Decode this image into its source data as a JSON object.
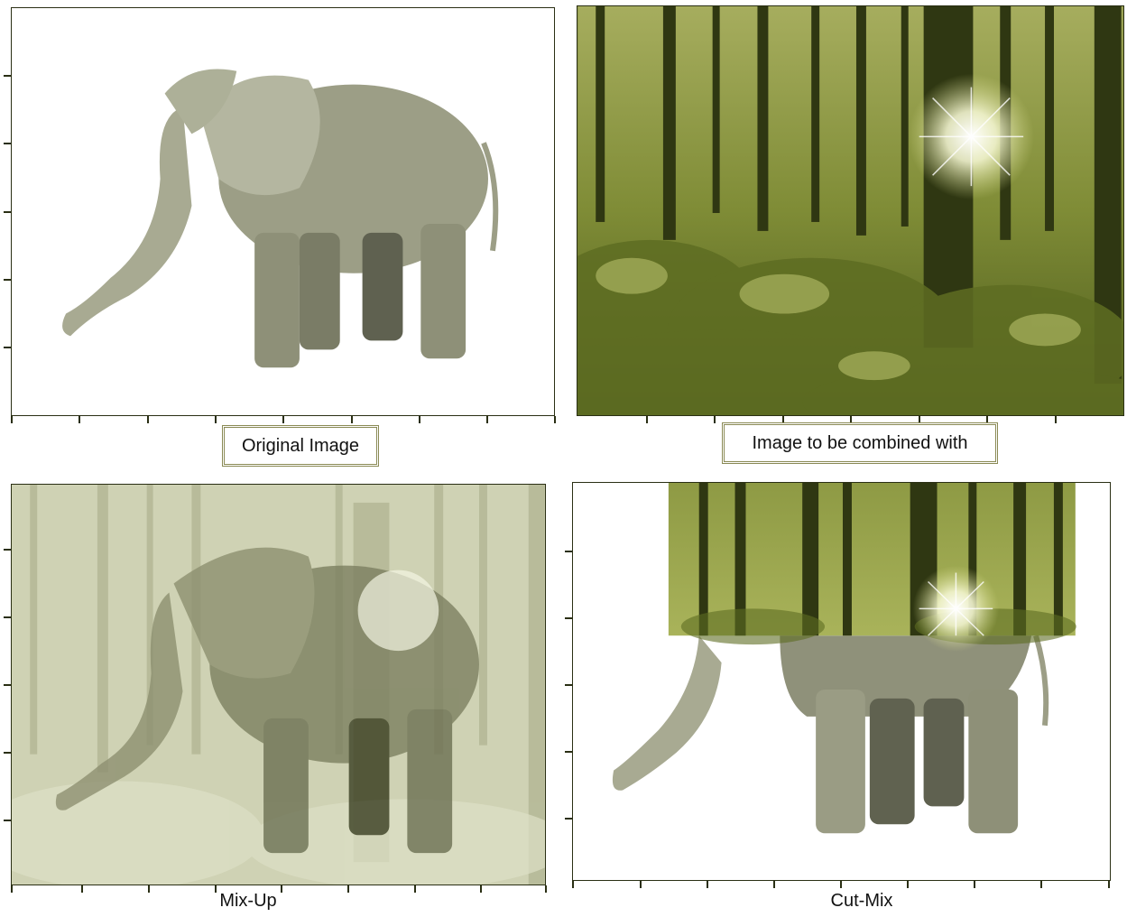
{
  "panels": {
    "original": {
      "caption": "Original Image"
    },
    "combine": {
      "caption": "Image to be combined with"
    },
    "mixup": {
      "caption": "Mix-Up"
    },
    "cutmix": {
      "caption": "Cut-Mix"
    }
  },
  "colors": {
    "axis": "#2a2f14",
    "caption_border": "#8a8a55",
    "forest_dark": "#2f3a14",
    "forest_light": "#a9b35a",
    "elephant": "#9a9c82"
  }
}
